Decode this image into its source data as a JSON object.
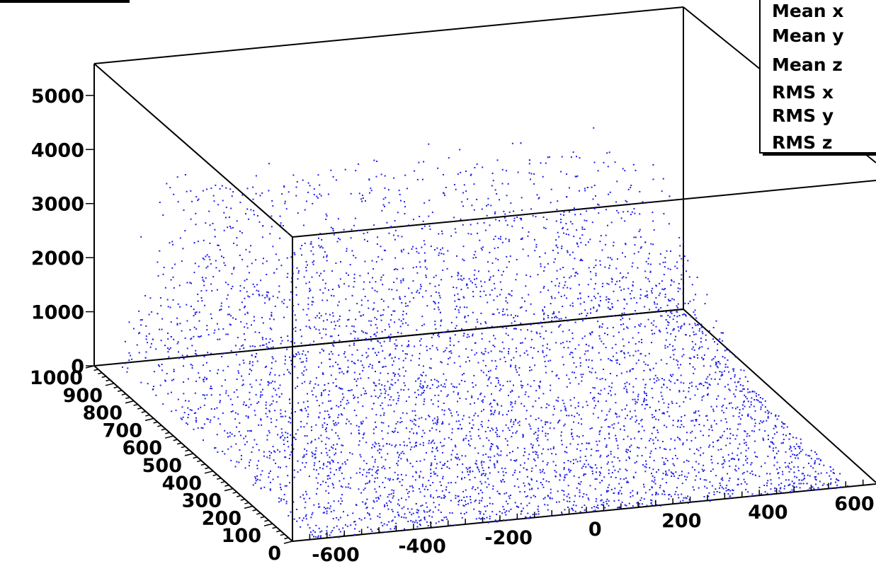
{
  "chart_data": {
    "type": "scatter",
    "subtype": "3d-scatter",
    "title": "",
    "point_color": "#1f1fe6",
    "axes": {
      "x": {
        "range": [
          -700,
          650
        ],
        "ticks": [
          -600,
          -400,
          -200,
          0,
          200,
          400,
          600
        ],
        "tick_labels": [
          "-600",
          "-400",
          "-200",
          "0",
          "200",
          "400",
          "600"
        ]
      },
      "y": {
        "range": [
          0,
          1000
        ],
        "ticks": [
          0,
          100,
          200,
          300,
          400,
          500,
          600,
          700,
          800,
          900,
          1000
        ],
        "tick_labels": [
          "0",
          "100",
          "200",
          "300",
          "400",
          "500",
          "600",
          "700",
          "800",
          "900",
          "1000"
        ]
      },
      "z": {
        "range": [
          0,
          5600
        ],
        "ticks": [
          0,
          1000,
          2000,
          3000,
          4000,
          5000
        ],
        "tick_labels": [
          "0",
          "1000",
          "2000",
          "3000",
          "4000",
          "5000"
        ]
      }
    },
    "surface_model": {
      "description_keys": [
        "plateau_z",
        "x_edge_low",
        "x_edge_high",
        "rise_start_y",
        "rise_end_y"
      ],
      "plateau_z": 3400,
      "x_edge_low": -650,
      "x_edge_high": 600,
      "rise_start_y": 0,
      "rise_end_y": 800
    },
    "grid": false,
    "legend": "none"
  },
  "stats_box": {
    "rows": [
      "Mean x",
      "Mean y",
      "Mean z",
      "RMS x",
      "RMS y",
      "RMS z"
    ]
  }
}
